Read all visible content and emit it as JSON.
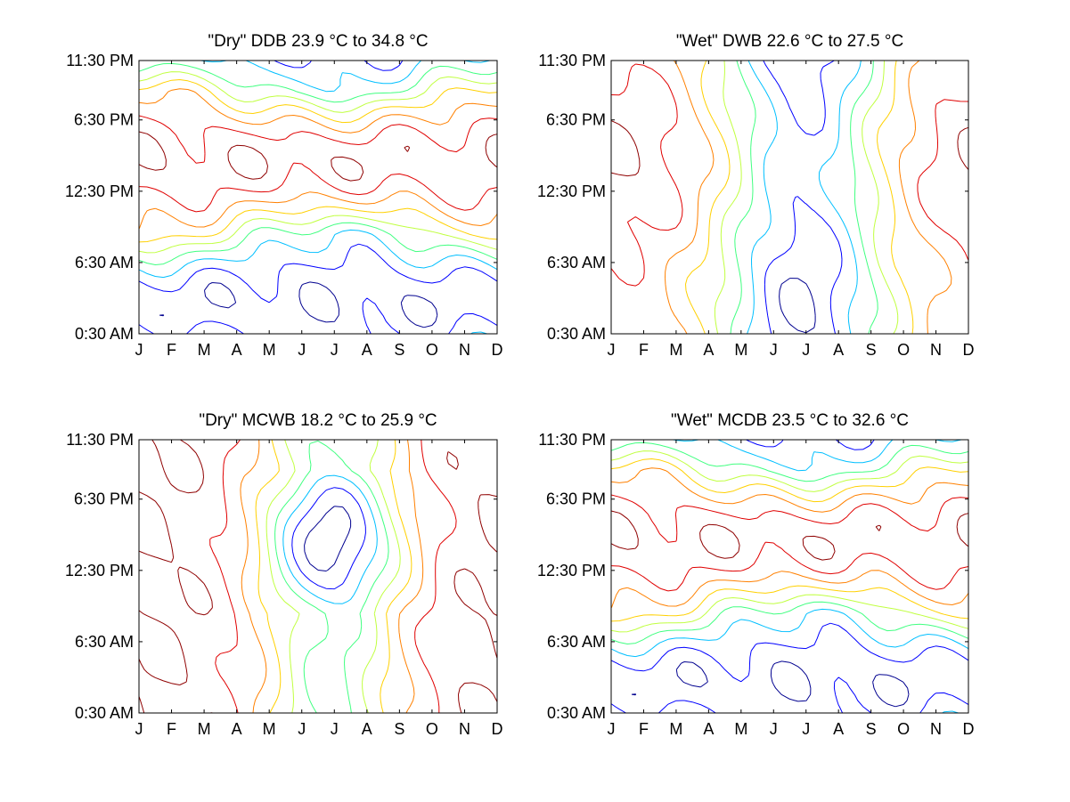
{
  "figure": {
    "background": "#ffffff",
    "contour_colors": [
      "#00008f",
      "#0000ff",
      "#00bfff",
      "#40ff80",
      "#c0ff40",
      "#ffd000",
      "#ff8000",
      "#e00000",
      "#8f0000"
    ]
  },
  "chart_data": [
    {
      "type": "contour",
      "title": "\"Dry\" DDB  23.9 °C to  34.8 °C",
      "x_ticks": [
        "J",
        "F",
        "M",
        "A",
        "M",
        "J",
        "J",
        "A",
        "S",
        "O",
        "N",
        "D"
      ],
      "y_ticks": [
        "0:30 AM",
        "6:30 AM",
        "12:30 PM",
        "6:30 PM",
        "11:30 PM"
      ],
      "xlim": [
        1,
        12
      ],
      "ylim": [
        0.5,
        23.5
      ],
      "grid": false,
      "range_min": 23.9,
      "range_max": 34.8,
      "unit": "°C",
      "pattern": "diurnal",
      "levels": 9
    },
    {
      "type": "contour",
      "title": "\"Wet\" DWB  22.6 °C to  27.5 °C",
      "x_ticks": [
        "J",
        "F",
        "M",
        "A",
        "M",
        "J",
        "J",
        "A",
        "S",
        "O",
        "N",
        "D"
      ],
      "y_ticks": [
        "0:30 AM",
        "6:30 AM",
        "12:30 PM",
        "6:30 PM",
        "11:30 PM"
      ],
      "xlim": [
        1,
        12
      ],
      "ylim": [
        0.5,
        23.5
      ],
      "grid": false,
      "range_min": 22.6,
      "range_max": 27.5,
      "unit": "°C",
      "pattern": "seasonal",
      "levels": 9
    },
    {
      "type": "contour",
      "title": "\"Dry\" MCWB  18.2 °C to  25.9 °C",
      "x_ticks": [
        "J",
        "F",
        "M",
        "A",
        "M",
        "J",
        "J",
        "A",
        "S",
        "O",
        "N",
        "D"
      ],
      "y_ticks": [
        "0:30 AM",
        "6:30 AM",
        "12:30 PM",
        "6:30 PM",
        "11:30 PM"
      ],
      "xlim": [
        1,
        12
      ],
      "ylim": [
        0.5,
        23.5
      ],
      "grid": false,
      "range_min": 18.2,
      "range_max": 25.9,
      "unit": "°C",
      "pattern": "afternoon-minimum",
      "levels": 9
    },
    {
      "type": "contour",
      "title": "\"Wet\" MCDB  23.5 °C to  32.6 °C",
      "x_ticks": [
        "J",
        "F",
        "M",
        "A",
        "M",
        "J",
        "J",
        "A",
        "S",
        "O",
        "N",
        "D"
      ],
      "y_ticks": [
        "0:30 AM",
        "6:30 AM",
        "12:30 PM",
        "6:30 PM",
        "11:30 PM"
      ],
      "xlim": [
        1,
        12
      ],
      "ylim": [
        0.5,
        23.5
      ],
      "grid": false,
      "range_min": 23.5,
      "range_max": 32.6,
      "unit": "°C",
      "pattern": "diurnal",
      "levels": 9
    }
  ]
}
